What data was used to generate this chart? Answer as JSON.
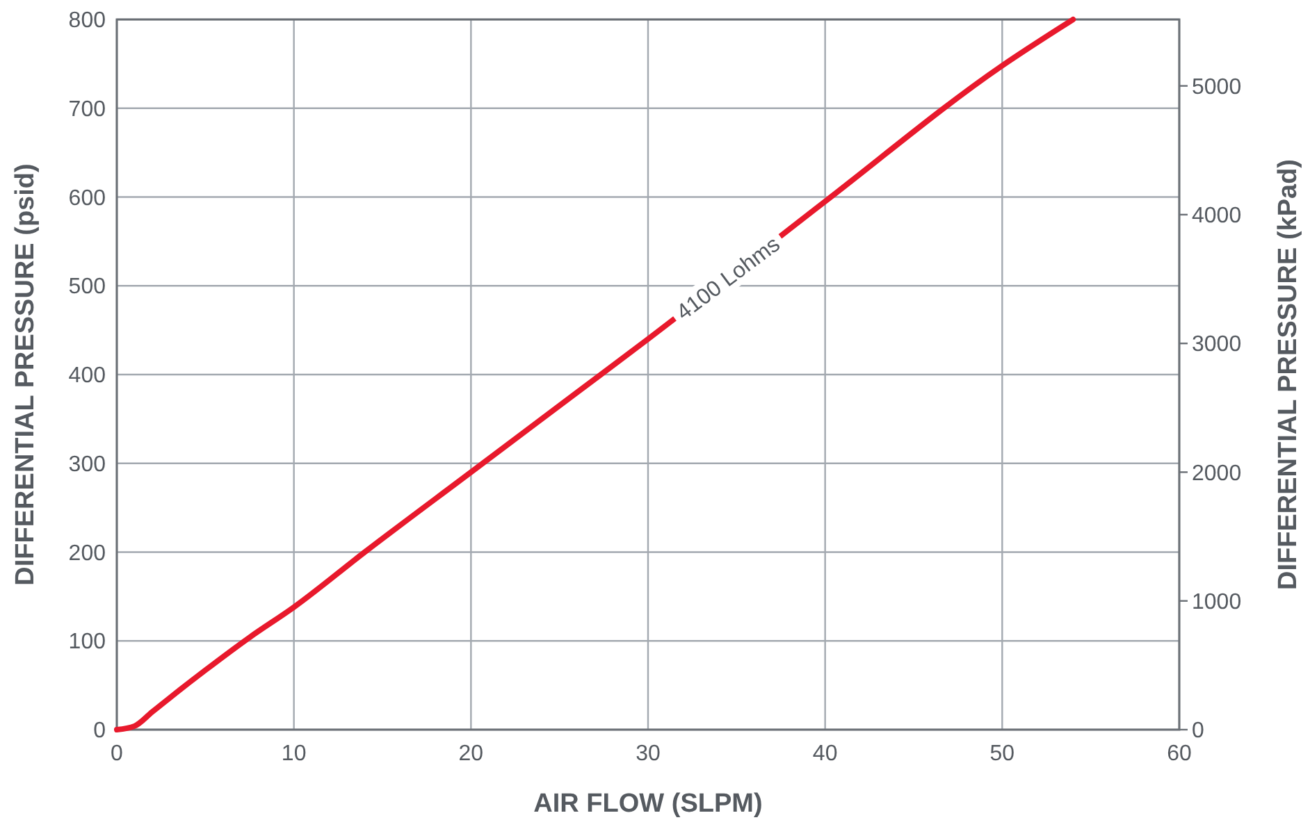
{
  "chart_data": {
    "type": "line",
    "xlabel": "AIR FLOW (SLPM)",
    "ylabel": "DIFFERENTIAL PRESSURE (psid)",
    "y2label": "DIFFERENTIAL PRESSURE (kPad)",
    "x": [
      0,
      1,
      2,
      3,
      5,
      7.5,
      10,
      14,
      20,
      26,
      30,
      40,
      50,
      54
    ],
    "series": [
      {
        "color": "#e8192c",
        "values": [
          0,
          4,
          20,
          36,
          67,
          104,
          138,
          200,
          290,
          380,
          440,
          595,
          748,
          800
        ]
      }
    ],
    "xlim": [
      0,
      60
    ],
    "xticks": [
      0,
      10,
      20,
      30,
      40,
      50,
      60
    ],
    "ylim": [
      0,
      800
    ],
    "yticks": [
      0,
      100,
      200,
      300,
      400,
      500,
      600,
      700,
      800
    ],
    "y2lim": [
      0,
      5516
    ],
    "y2ticks": [
      0,
      1000,
      2000,
      3000,
      4000,
      5000
    ],
    "grid": true,
    "marker": "none",
    "line_style": "solid",
    "annotations": [
      {
        "text": "4100 Lohms",
        "x": 34.5,
        "y": 509
      }
    ]
  }
}
